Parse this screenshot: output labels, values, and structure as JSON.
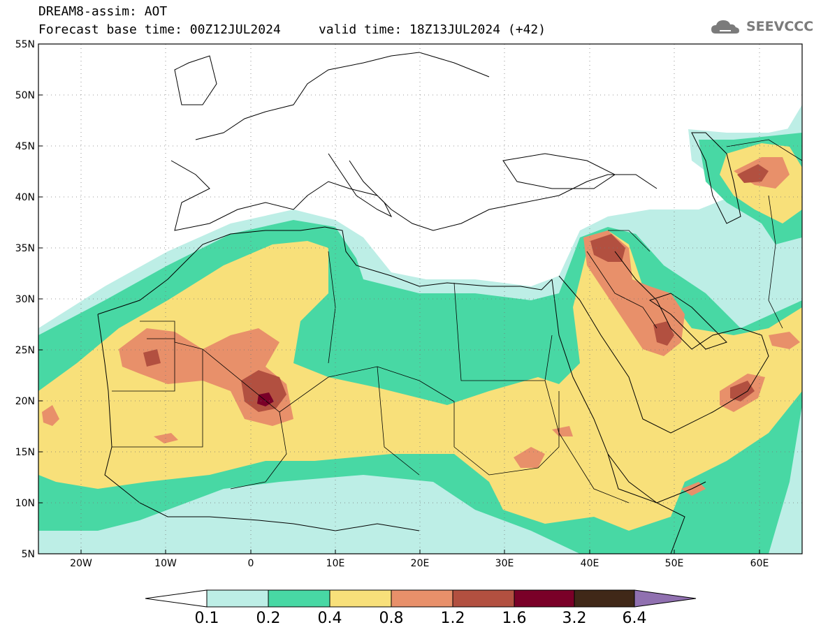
{
  "header": {
    "line1": "DREAM8-assim: AOT",
    "line2": "Forecast base time: 00Z12JUL2024     valid time: 18Z13JUL2024 (+42)"
  },
  "logo": {
    "text": "SEEVCCC",
    "icon": "cloud-icon"
  },
  "map": {
    "lon_range": [
      -25,
      65
    ],
    "lat_range": [
      5,
      55
    ],
    "lat_ticks": [
      "55N",
      "50N",
      "45N",
      "40N",
      "35N",
      "30N",
      "25N",
      "20N",
      "15N",
      "10N",
      "5N"
    ],
    "lon_ticks": [
      "20W",
      "10W",
      "0",
      "10E",
      "20E",
      "30E",
      "40E",
      "50E",
      "60E"
    ],
    "grid": "dotted"
  },
  "colorbar": {
    "labels": [
      "0.1",
      "0.2",
      "0.4",
      "0.8",
      "1.2",
      "1.6",
      "3.2",
      "6.4"
    ],
    "colors": [
      "#ffffff",
      "#bdeee6",
      "#48d8a4",
      "#f8e07a",
      "#e8906a",
      "#b25040",
      "#7a0028",
      "#402818",
      "#9070b0"
    ]
  }
}
